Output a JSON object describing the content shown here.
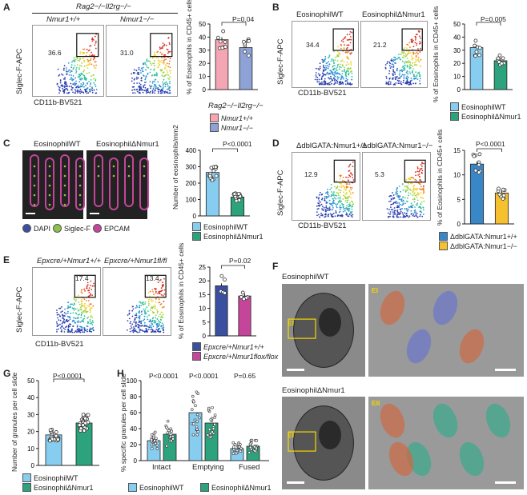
{
  "colors": {
    "pink": "#f4a6b4",
    "lavender": "#8ea2d6",
    "ltblue": "#86cdef",
    "green": "#2ca37c",
    "blue": "#3a87c8",
    "yellow": "#f5c12e",
    "navy": "#3b4fa0",
    "magenta": "#c5459a"
  },
  "A": {
    "label": "A",
    "strain": "Rag2−/−Il2rg−/−",
    "g1": "Nmur1+/+",
    "g2": "Nmur1−/−",
    "n1": "36.6",
    "n2": "31.0",
    "xaxis": "CD11b-BV521",
    "yaxis": "Siglec-F-APC",
    "ylabel": "% of Eosinophils in CD45+ cells",
    "p": "P=0.04",
    "yticks": [
      "0",
      "10",
      "20",
      "30",
      "40",
      "50"
    ],
    "chart_data": {
      "type": "bar",
      "categories": [
        "Nmur1+/+",
        "Nmur1−/−"
      ],
      "values": [
        38,
        32
      ],
      "ylim": [
        0,
        50
      ],
      "ylabel": "% of Eosinophils in CD45+ cells"
    },
    "legend": [
      "Nmur1+/+",
      "Nmur1−/−"
    ],
    "legend_title": "Rag2−/−Il2rg−/−"
  },
  "B": {
    "label": "B",
    "g1": "EosinophilWT",
    "g2": "EosinophilΔNmur1",
    "n1": "34.4",
    "n2": "21.2",
    "xaxis": "CD11b-BV521",
    "yaxis": "Siglec-F-APC",
    "ylabel": "% of Eosinophils in CD45+ cells",
    "p": "P=0.005",
    "yticks": [
      "0",
      "10",
      "20",
      "30",
      "40",
      "50"
    ],
    "chart_data": {
      "type": "bar",
      "categories": [
        "EosinophilWT",
        "EosinophilΔNmur1"
      ],
      "values": [
        32,
        22
      ],
      "ylim": [
        0,
        50
      ]
    },
    "legend": [
      "EosinophilWT",
      "EosinophilΔNmur1"
    ]
  },
  "C": {
    "label": "C",
    "g1": "EosinophilWT",
    "g2": "EosinophilΔNmur1",
    "ylabel": "Number of eosinophils/mm2",
    "p": "P<0.0001",
    "yticks": [
      "0",
      "100",
      "200",
      "300",
      "400"
    ],
    "stain": [
      "DAPI",
      "Siglec-F",
      "EPCAM"
    ],
    "chart_data": {
      "type": "bar",
      "categories": [
        "EosinophilWT",
        "EosinophilΔNmur1"
      ],
      "values": [
        265,
        115
      ],
      "ylim": [
        0,
        400
      ]
    },
    "legend": [
      "EosinophilWT",
      "EosinophilΔNmur1"
    ]
  },
  "D": {
    "label": "D",
    "g1": "ΔdblGATA:Nmur1+/+",
    "g2": "ΔdblGATA:Nmur1−/−",
    "n1": "12.9",
    "n2": "5.3",
    "xaxis": "CD11b-BV521",
    "yaxis": "Siglec-F-APC",
    "ylabel": "% of Eosinophils in CD45+ cells",
    "p": "P<0.0001",
    "yticks": [
      "0",
      "5",
      "10",
      "15"
    ],
    "chart_data": {
      "type": "bar",
      "categories": [
        "ΔdblGATA:Nmur1+/+",
        "ΔdblGATA:Nmur1−/−"
      ],
      "values": [
        12.2,
        6.3
      ],
      "ylim": [
        0,
        15
      ]
    },
    "legend": [
      "ΔdblGATA:Nmur1+/+",
      "ΔdblGATA:Nmur1−/−"
    ]
  },
  "E": {
    "label": "E",
    "g1": "Epxcre/+Nmur1+/+",
    "g2": "Epxcre/+Nmur1fl/fl",
    "n1": "17.4",
    "n2": "13.4",
    "xaxis": "CD11b-BV521",
    "yaxis": "Siglec-F-APC",
    "ylabel": "% of Eosinophils in CD45+ cells",
    "p": "P=0.02",
    "yticks": [
      "0",
      "5",
      "10",
      "15",
      "20",
      "25"
    ],
    "chart_data": {
      "type": "bar",
      "categories": [
        "Epxcre/+Nmur1+/+",
        "Epxcre/+Nmur1flox/flox"
      ],
      "values": [
        18.2,
        14.5
      ],
      "ylim": [
        0,
        25
      ]
    },
    "legend": [
      "Epxcre/+Nmur1+/+",
      "Epxcre/+Nmur1flox/flox"
    ]
  },
  "F": {
    "label": "F",
    "top": "EosinophilWT",
    "bottom": "EosinophilΔNmur1",
    "inset1": "EI",
    "inset2": "EII"
  },
  "G": {
    "label": "G",
    "ylabel": "Number of granules per cell slide",
    "p": "P<0.0001",
    "yticks": [
      "0",
      "10",
      "20",
      "30",
      "40",
      "50"
    ],
    "chart_data": {
      "type": "bar",
      "categories": [
        "EosinophilWT",
        "EosinophilΔNmur1"
      ],
      "values": [
        18,
        25
      ],
      "ylim": [
        0,
        50
      ]
    },
    "legend": [
      "EosinophilWT",
      "EosinophilΔNmur1"
    ]
  },
  "H": {
    "label": "H",
    "ylabel": "% specific granules per cell slide",
    "yticks": [
      "0",
      "20",
      "40",
      "60",
      "80",
      "100"
    ],
    "pvals": [
      "P<0.0001",
      "P<0.0001",
      "P=0.65"
    ],
    "chart_data": {
      "type": "bar",
      "categories": [
        "Intact",
        "Emptying",
        "Fused"
      ],
      "series": [
        {
          "name": "EosinophilWT",
          "values": [
            25,
            60,
            15
          ]
        },
        {
          "name": "EosinophilΔNmur1",
          "values": [
            33,
            47,
            18
          ]
        }
      ],
      "ylim": [
        0,
        100
      ]
    },
    "legend": [
      "EosinophilWT",
      "EosinophilΔNmur1"
    ]
  }
}
